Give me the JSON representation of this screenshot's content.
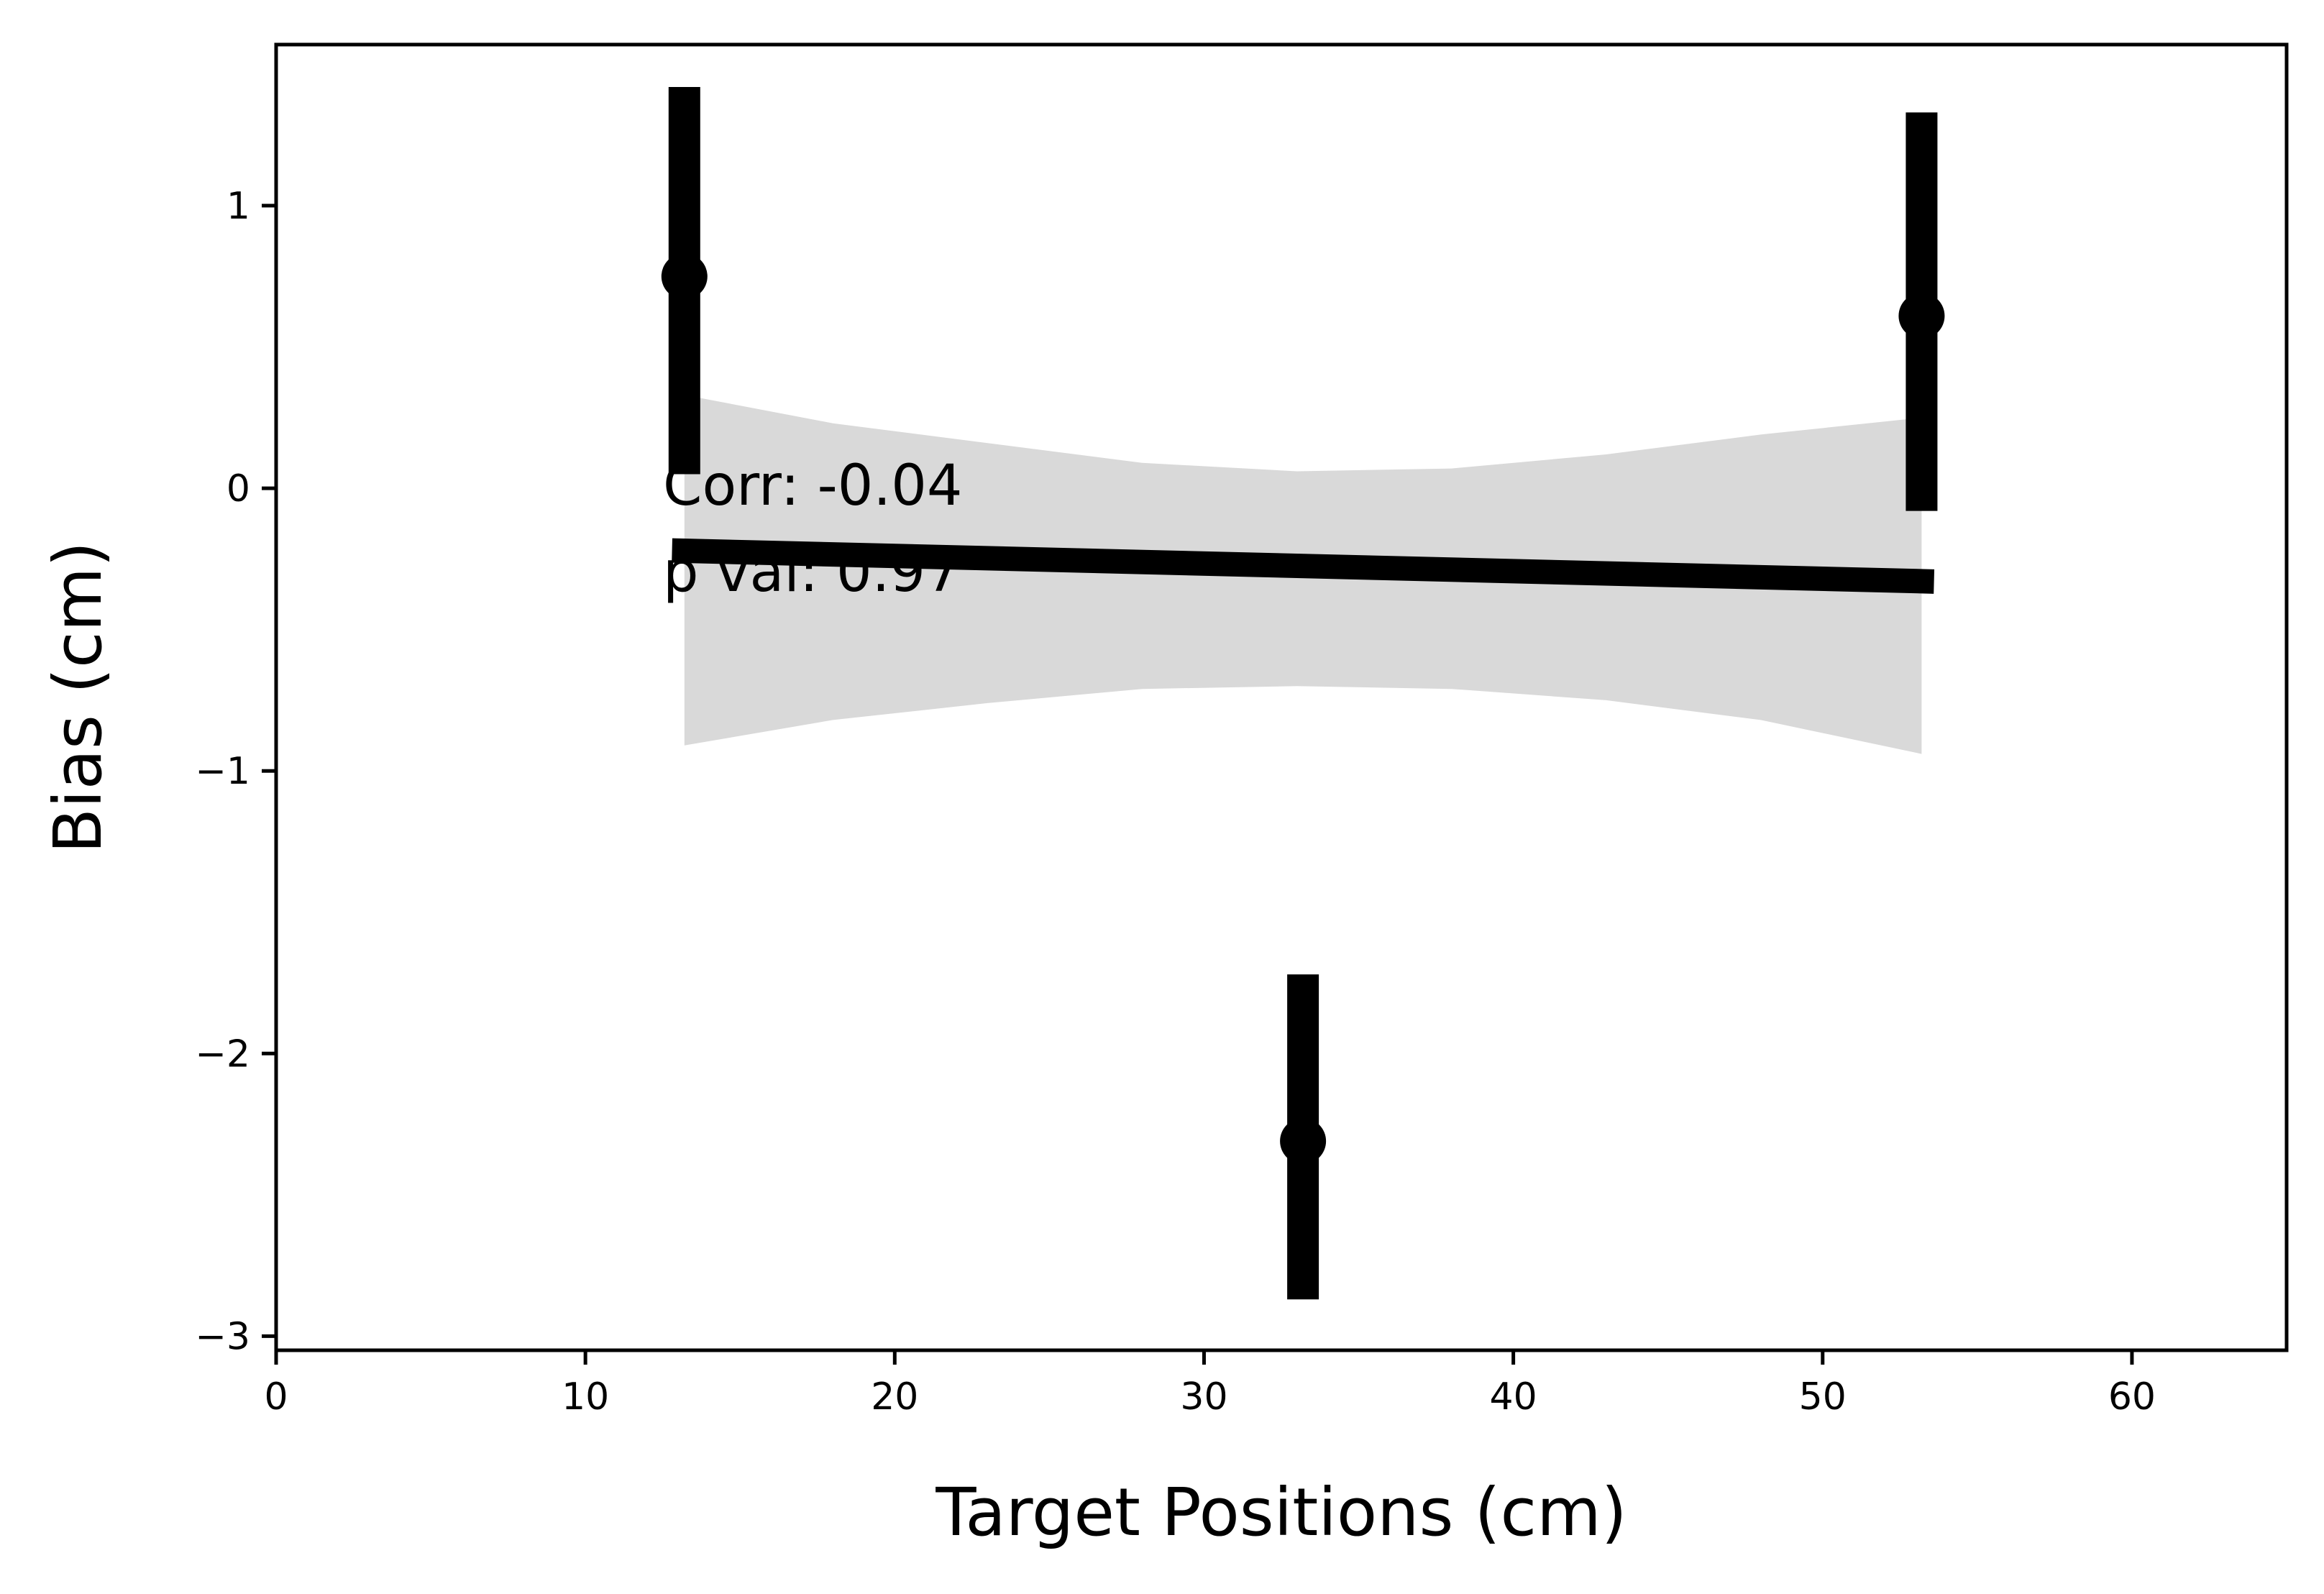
{
  "chart_data": {
    "type": "scatter",
    "xlabel": "Target Positions (cm)",
    "ylabel": "Bias (cm)",
    "xlim": [
      0,
      65
    ],
    "ylim": [
      -3.05,
      1.57
    ],
    "x_ticks": [
      0,
      10,
      20,
      30,
      40,
      50,
      60
    ],
    "y_ticks": [
      -3,
      -2,
      -1,
      0,
      1
    ],
    "y_tick_labels": [
      "−3",
      "−2",
      "−1",
      "0",
      "1"
    ],
    "grid": false,
    "points": [
      {
        "x": 13.2,
        "y": 0.75,
        "err_low": 0.05,
        "err_high": 1.42
      },
      {
        "x": 33.2,
        "y": -2.31,
        "err_low": -2.87,
        "err_high": -1.72
      },
      {
        "x": 53.2,
        "y": 0.61,
        "err_low": -0.08,
        "err_high": 1.33
      }
    ],
    "regression_line": {
      "x": [
        12.8,
        53.6
      ],
      "y": [
        -0.22,
        -0.33
      ]
    },
    "confidence_band": {
      "x": [
        13.2,
        18,
        23,
        28,
        33,
        38,
        43,
        48,
        53.2
      ],
      "upper": [
        0.33,
        0.23,
        0.16,
        0.09,
        0.06,
        0.07,
        0.12,
        0.19,
        0.25
      ],
      "lower": [
        -0.91,
        -0.82,
        -0.76,
        -0.71,
        -0.7,
        -0.71,
        -0.75,
        -0.82,
        -0.94
      ]
    },
    "annotations": [
      "Corr: -0.04",
      "p val: 0.97"
    ],
    "colors": {
      "marks": "#000000",
      "band": "#d9d9d9"
    }
  }
}
